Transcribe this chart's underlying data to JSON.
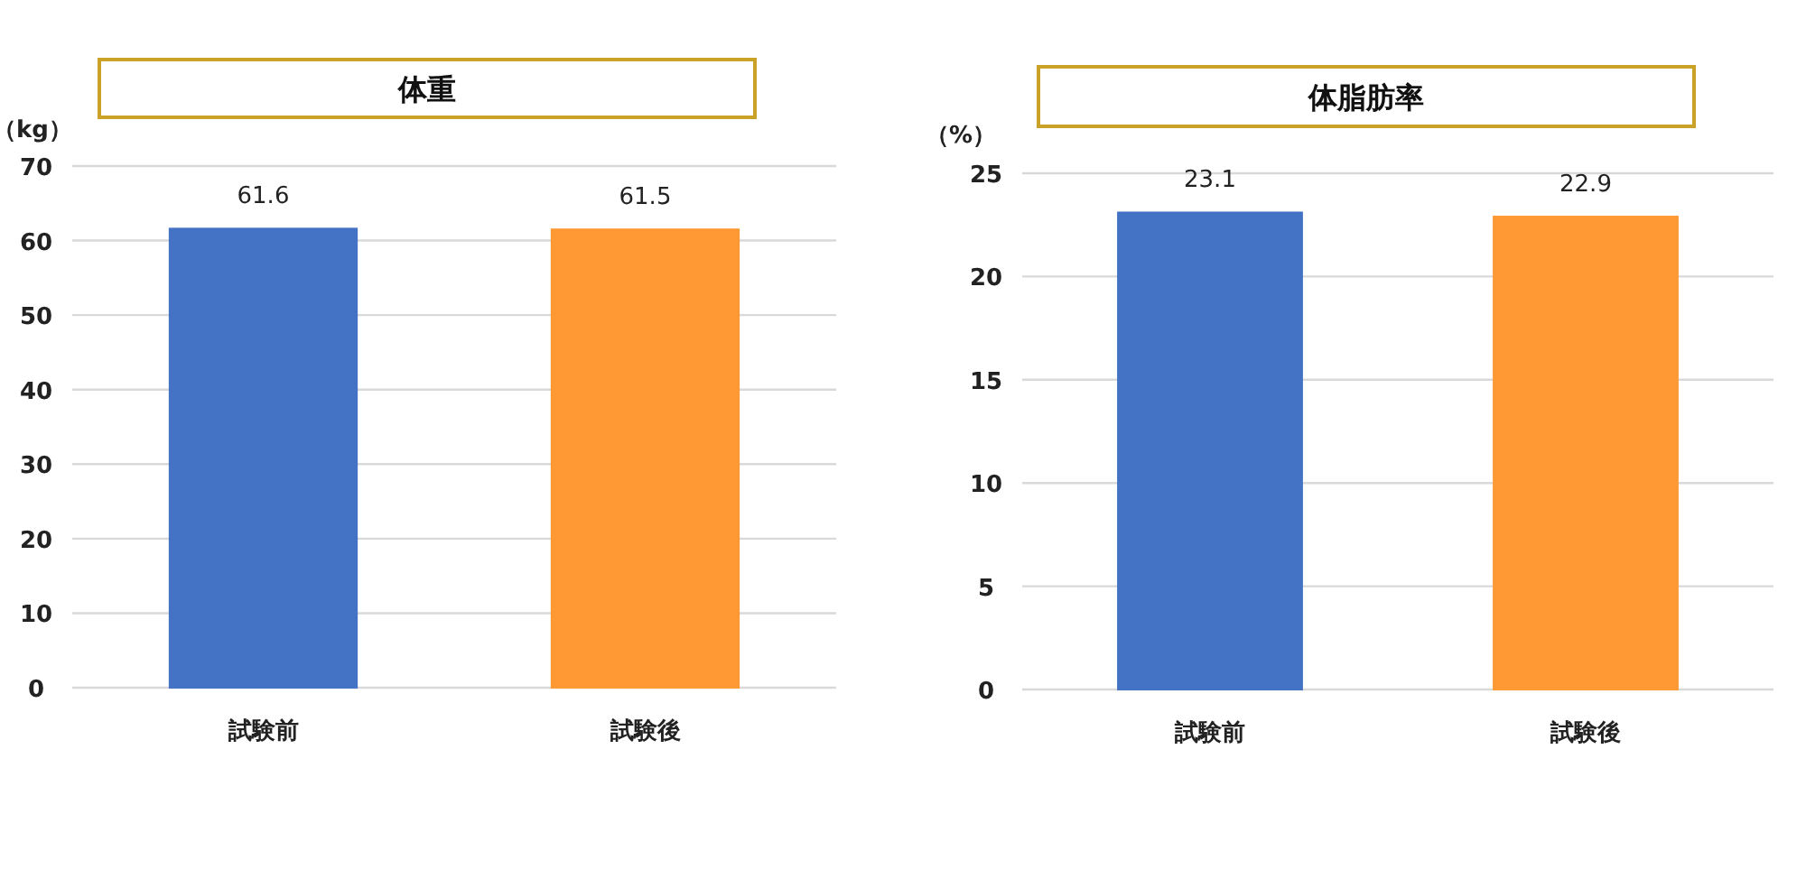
{
  "chart_data": [
    {
      "type": "bar",
      "title": "体重",
      "ylabel": "（kg）",
      "categories": [
        "試験前",
        "試験後"
      ],
      "values": [
        61.6,
        61.5
      ],
      "colors": [
        "#4472c4",
        "#ff9933"
      ],
      "ylim": [
        0,
        70
      ],
      "yticks": [
        0,
        10,
        20,
        30,
        40,
        50,
        60,
        70
      ],
      "grid": "y",
      "data_labels": true
    },
    {
      "type": "bar",
      "title": "体脂肪率",
      "ylabel": "（%）",
      "categories": [
        "試験前",
        "試験後"
      ],
      "values": [
        23.1,
        22.9
      ],
      "colors": [
        "#4472c4",
        "#ff9933"
      ],
      "ylim": [
        0,
        25
      ],
      "yticks": [
        0,
        5,
        10,
        15,
        20,
        25
      ],
      "grid": "y",
      "data_labels": true
    }
  ]
}
